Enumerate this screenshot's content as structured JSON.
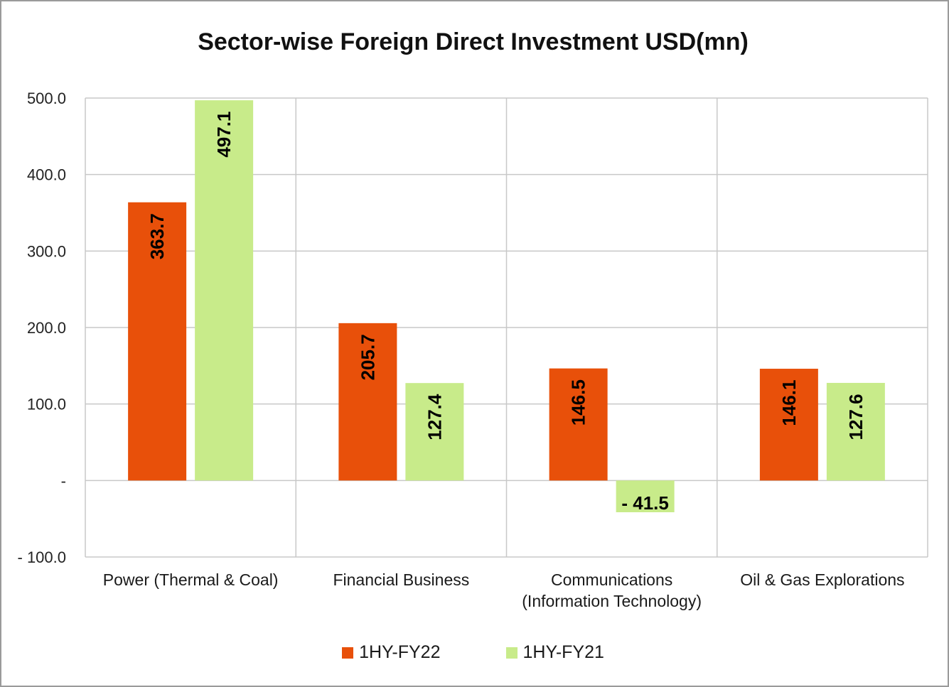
{
  "chart_data": {
    "type": "bar",
    "title": "Sector-wise Foreign Direct Investment USD(mn)",
    "xlabel": "",
    "ylabel": "",
    "ylim": [
      -100,
      500
    ],
    "yticks": [
      {
        "value": 500,
        "label": "500.0"
      },
      {
        "value": 400,
        "label": "400.0"
      },
      {
        "value": 300,
        "label": "300.0"
      },
      {
        "value": 200,
        "label": "200.0"
      },
      {
        "value": 100,
        "label": "100.0"
      },
      {
        "value": 0,
        "label": "-"
      },
      {
        "value": -100,
        "label": "- 100.0"
      }
    ],
    "categories": [
      [
        "Power (Thermal & Coal)"
      ],
      [
        "Financial Business"
      ],
      [
        "Communications",
        "(Information Technology)"
      ],
      [
        "Oil & Gas Explorations"
      ]
    ],
    "series": [
      {
        "name": "1HY-FY22",
        "color": "#e8500a",
        "values": [
          363.7,
          205.7,
          146.5,
          146.1
        ],
        "labels": [
          "363.7",
          "205.7",
          "146.5",
          "146.1"
        ]
      },
      {
        "name": "1HY-FY21",
        "color": "#c8eb8a",
        "values": [
          497.1,
          127.4,
          -41.5,
          127.6
        ],
        "labels": [
          "497.1",
          "127.4",
          "- 41.5",
          "127.6"
        ]
      }
    ],
    "grid": true,
    "legend_position": "bottom"
  }
}
